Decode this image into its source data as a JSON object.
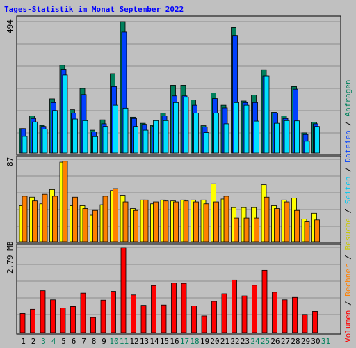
{
  "chart_data": [
    {
      "type": "bar",
      "title": "Tages-Statistik im Monat September 2022",
      "categories": [
        "1",
        "2",
        "3",
        "4",
        "5",
        "6",
        "7",
        "8",
        "9",
        "10",
        "11",
        "12",
        "13",
        "14",
        "15",
        "16",
        "17",
        "18",
        "19",
        "20",
        "21",
        "22",
        "23",
        "24",
        "25",
        "26",
        "27",
        "28",
        "29",
        "30",
        "31"
      ],
      "weekend_days": [
        "3",
        "4",
        "10",
        "11",
        "17",
        "18",
        "24",
        "25",
        "31"
      ],
      "ymax_label": "494",
      "ylim": [
        0,
        494
      ],
      "grid": true,
      "series": [
        {
          "name": "Anfragen",
          "color": "#00805c",
          "values": [
            92,
            140,
            104,
            204,
            330,
            163,
            243,
            86,
            125,
            298,
            494,
            135,
            112,
            104,
            150,
            255,
            255,
            200,
            103,
            226,
            180,
            472,
            196,
            218,
            313,
            153,
            140,
            250,
            76,
            116,
            null
          ]
        },
        {
          "name": "Dateien",
          "color": "#0040ff",
          "values": [
            92,
            130,
            100,
            190,
            315,
            150,
            220,
            80,
            110,
            250,
            455,
            130,
            108,
            100,
            140,
            215,
            215,
            180,
            98,
            205,
            170,
            440,
            190,
            190,
            290,
            150,
            130,
            240,
            70,
            110,
            null
          ]
        },
        {
          "name": "Seiten",
          "color": "#00e0ff",
          "values": [
            63,
            117,
            90,
            160,
            293,
            128,
            122,
            62,
            100,
            180,
            169,
            100,
            86,
            122,
            122,
            190,
            210,
            150,
            77,
            150,
            110,
            190,
            180,
            120,
            290,
            112,
            122,
            121,
            45,
            100,
            null
          ]
        }
      ]
    },
    {
      "type": "bar",
      "ymax_label": "87",
      "ylim": [
        0,
        87
      ],
      "grid": true,
      "series": [
        {
          "name": "Besuche",
          "color": "#ffff00",
          "values": [
            38,
            47,
            40,
            55,
            84,
            38,
            38,
            28,
            39,
            54,
            49,
            35,
            44,
            40,
            44,
            43,
            44,
            44,
            44,
            61,
            45,
            36,
            36,
            36,
            60,
            38,
            44,
            46,
            24,
            30,
            null
          ]
        },
        {
          "name": "Rechner",
          "color": "#ff8000",
          "values": [
            48,
            43,
            50,
            48,
            85,
            47,
            35,
            33,
            48,
            56,
            42,
            33,
            44,
            42,
            43,
            42,
            43,
            42,
            40,
            42,
            48,
            25,
            25,
            25,
            47,
            35,
            42,
            33,
            21,
            23,
            null
          ]
        }
      ]
    },
    {
      "type": "bar",
      "ymax_label": "2.79 MB",
      "ylim": [
        0,
        2.79
      ],
      "grid": true,
      "series": [
        {
          "name": "Volumen",
          "color": "#ff0000",
          "values": [
            0.63,
            0.77,
            1.38,
            1.08,
            0.81,
            0.86,
            1.3,
            0.5,
            1.07,
            1.36,
            2.79,
            1.24,
            0.9,
            1.55,
            0.91,
            1.63,
            1.62,
            0.88,
            0.55,
            1.03,
            1.28,
            1.73,
            1.21,
            1.56,
            2.05,
            1.33,
            1.08,
            1.16,
            0.6,
            0.7,
            null
          ]
        }
      ]
    }
  ],
  "legend": {
    "volumen": "Volumen",
    "rechner": "Rechner",
    "besuche": "Besuche",
    "seiten": "Seiten",
    "dateien": "Dateien",
    "anfragen": "Anfragen",
    "sep": " / "
  },
  "colors": {
    "background": "#c0c0c0",
    "frame": "#000000",
    "title": "#0000ff",
    "weekday_label": "#000000",
    "weekend_label": "#00805c"
  }
}
